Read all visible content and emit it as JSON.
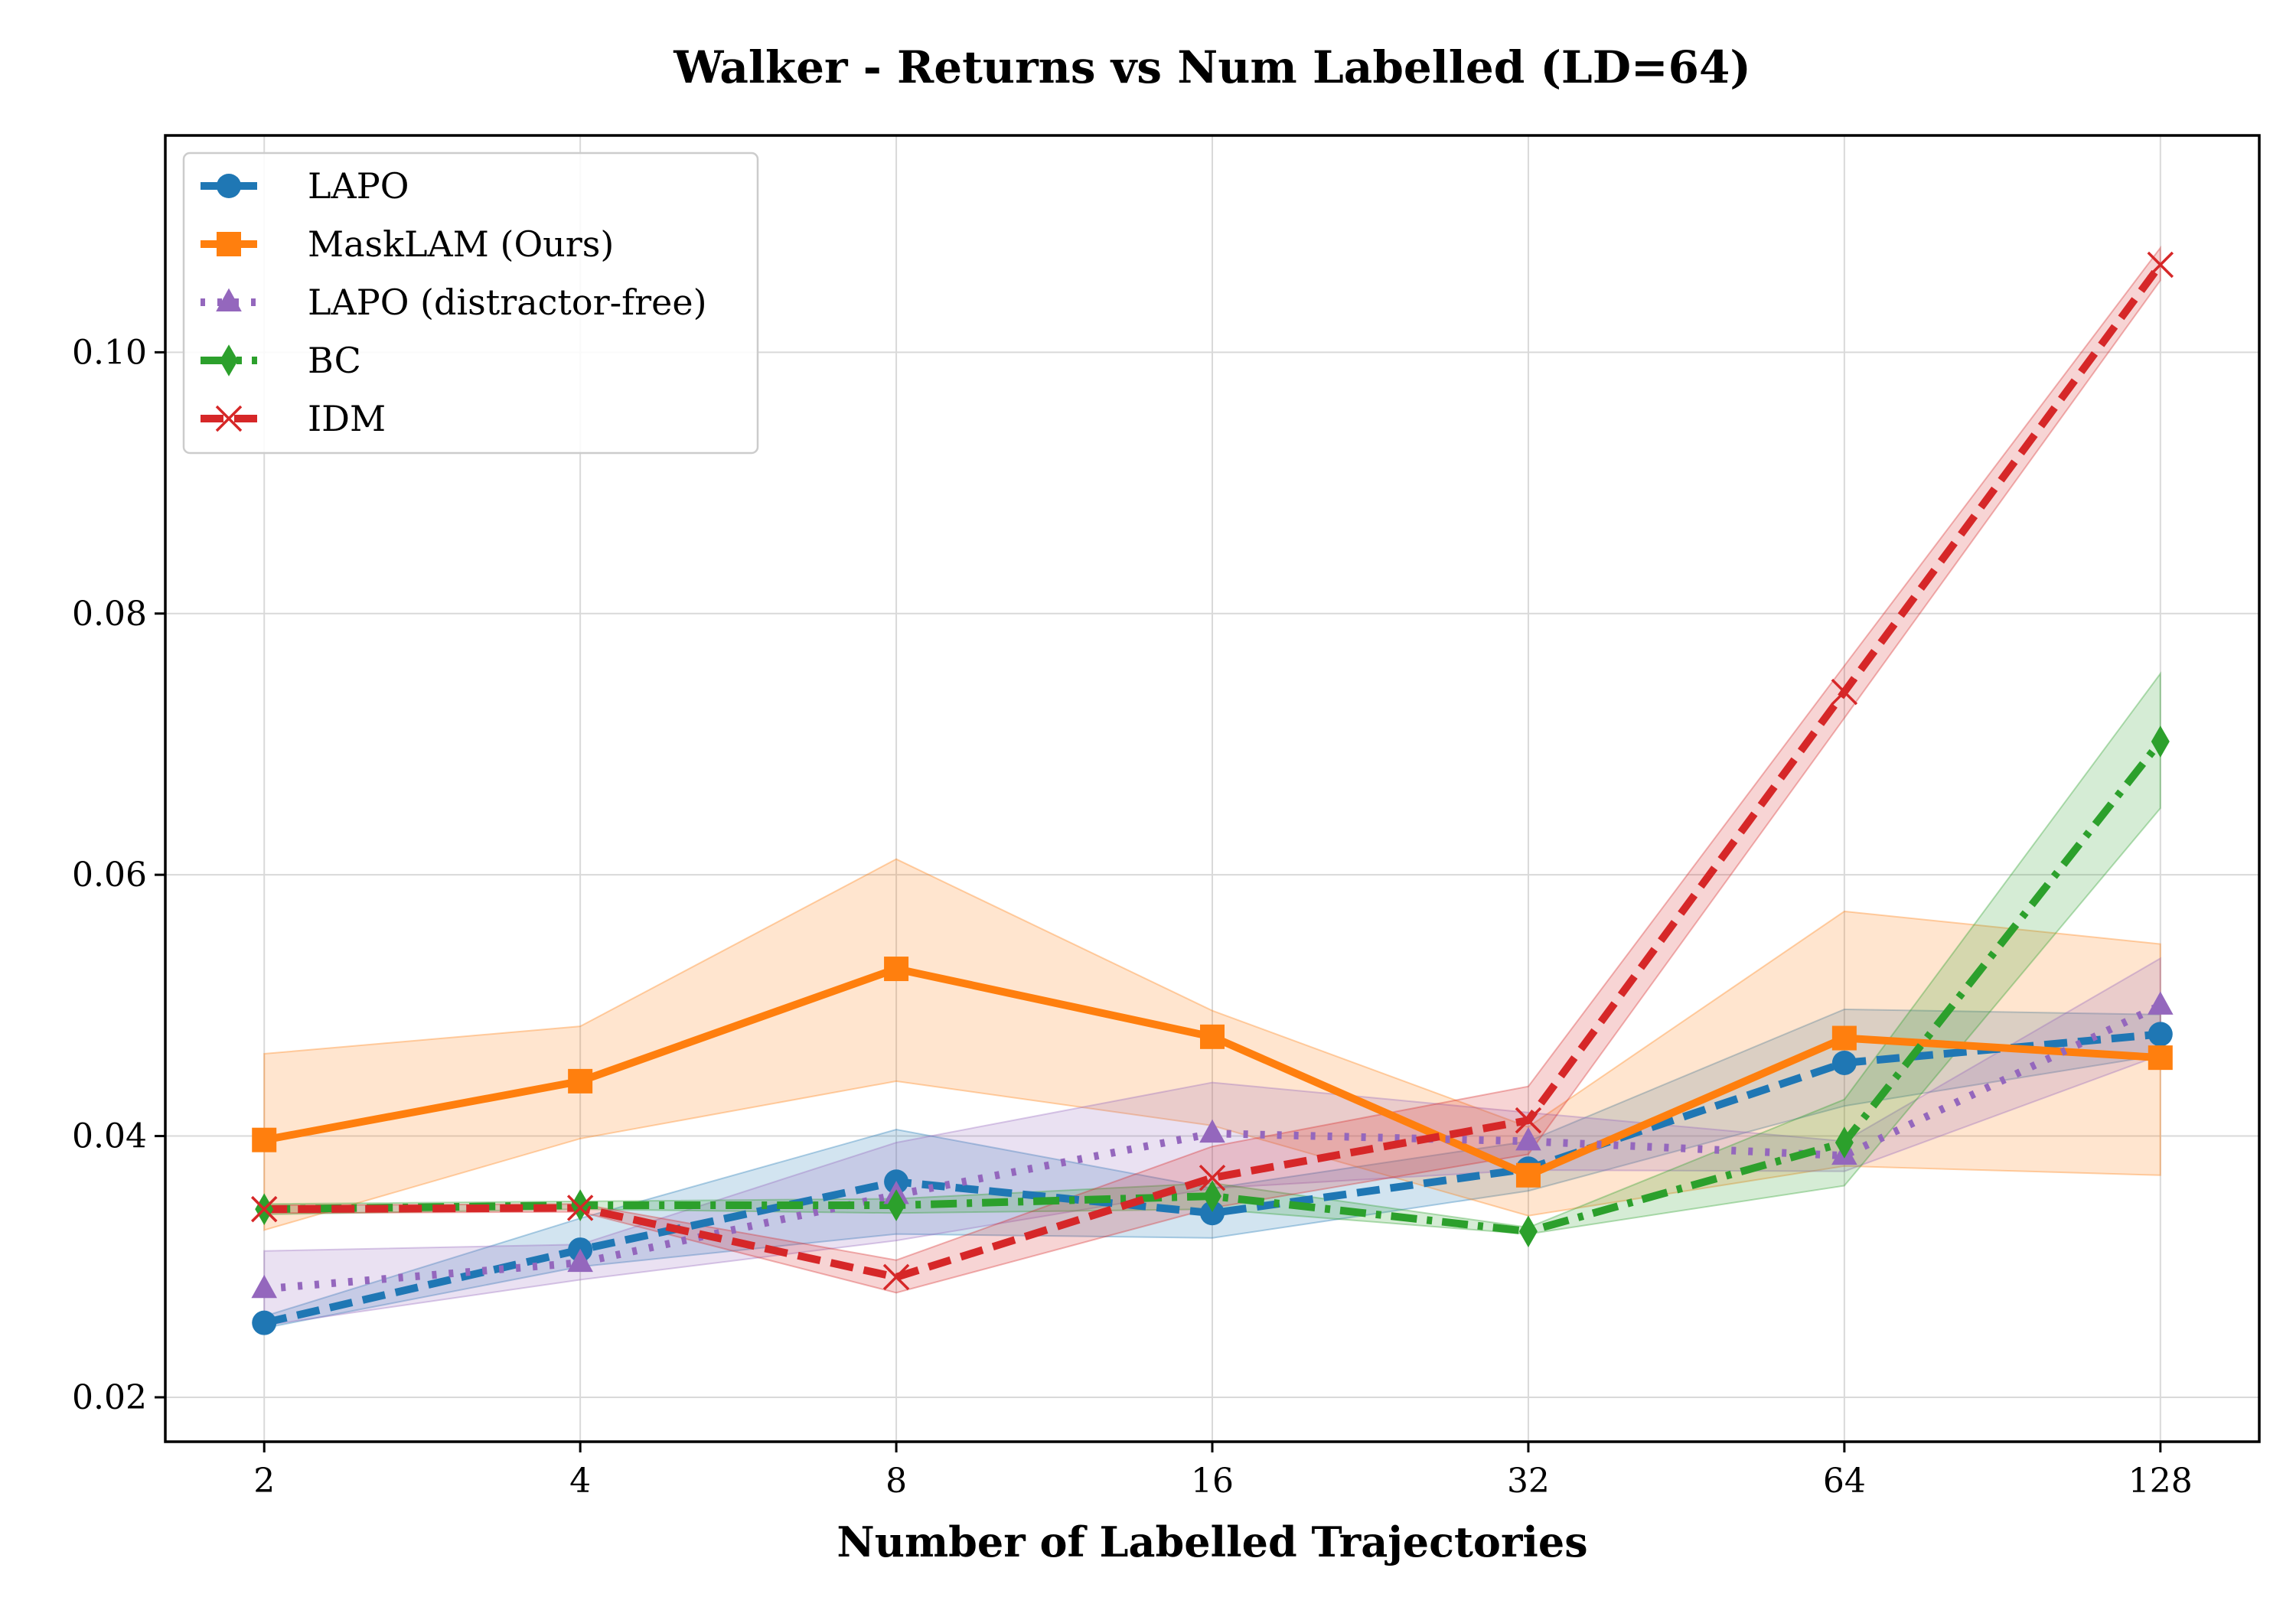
{
  "chart_data": {
    "type": "line",
    "title": "Walker - Returns vs Num Labelled (LD=64)",
    "xlabel": "Number of Labelled Trajectories",
    "ylabel": "",
    "x": [
      2,
      4,
      8,
      16,
      32,
      64,
      128
    ],
    "x_tick_labels": [
      "2",
      "4",
      "8",
      "16",
      "32",
      "64",
      "128"
    ],
    "x_scale": "log2",
    "xlim": [
      1.61,
      159
    ],
    "ylim": [
      0.0166,
      0.1166
    ],
    "y_ticks": [
      0.02,
      0.04,
      0.06,
      0.08,
      0.1
    ],
    "y_tick_labels": [
      "0.02",
      "0.04",
      "0.06",
      "0.08",
      "0.10"
    ],
    "grid": true,
    "legend_position": "top-left",
    "series": [
      {
        "name": "LAPO",
        "color": "#1f77b4",
        "dash": "dashed",
        "marker": "circle",
        "values": [
          0.0257,
          0.0313,
          0.0365,
          0.0341,
          0.0375,
          0.0456,
          0.0478
        ],
        "lower": [
          0.0253,
          0.03,
          0.0325,
          0.0322,
          0.0358,
          0.0423,
          0.0462
        ],
        "upper": [
          0.0262,
          0.0337,
          0.0405,
          0.036,
          0.0396,
          0.0497,
          0.0493
        ]
      },
      {
        "name": "MaskLAM (Ours)",
        "color": "#ff7f0e",
        "dash": "solid",
        "marker": "square",
        "values": [
          0.0397,
          0.0442,
          0.0528,
          0.0476,
          0.037,
          0.0475,
          0.046
        ],
        "lower": [
          0.0328,
          0.0398,
          0.0442,
          0.0408,
          0.0339,
          0.0377,
          0.037
        ],
        "upper": [
          0.0463,
          0.0484,
          0.0612,
          0.0496,
          0.0407,
          0.0572,
          0.0547
        ]
      },
      {
        "name": "LAPO (distractor-free)",
        "color": "#9467bd",
        "dash": "dotted",
        "marker": "triangle",
        "values": [
          0.0283,
          0.0303,
          0.0355,
          0.0402,
          0.0396,
          0.0385,
          0.05
        ],
        "lower": [
          0.0255,
          0.029,
          0.032,
          0.036,
          0.0374,
          0.0373,
          0.0462
        ],
        "upper": [
          0.0312,
          0.0317,
          0.0395,
          0.0441,
          0.0418,
          0.0396,
          0.0536
        ]
      },
      {
        "name": "BC",
        "color": "#2ca02c",
        "dash": "dashdot",
        "marker": "diamond",
        "values": [
          0.0344,
          0.0347,
          0.0347,
          0.0354,
          0.0327,
          0.0395,
          0.0702
        ],
        "lower": [
          0.034,
          0.0344,
          0.0341,
          0.0344,
          0.0325,
          0.0362,
          0.0651
        ],
        "upper": [
          0.0348,
          0.035,
          0.0352,
          0.0364,
          0.033,
          0.0428,
          0.0754
        ]
      },
      {
        "name": "IDM",
        "color": "#d62728",
        "dash": "dashed",
        "marker": "x",
        "values": [
          0.0344,
          0.0345,
          0.0292,
          0.0368,
          0.0412,
          0.074,
          0.1067
        ],
        "lower": [
          0.0341,
          0.0342,
          0.028,
          0.0345,
          0.0386,
          0.072,
          0.1055
        ],
        "upper": [
          0.0347,
          0.0348,
          0.0305,
          0.0392,
          0.0438,
          0.076,
          0.108
        ]
      }
    ]
  }
}
